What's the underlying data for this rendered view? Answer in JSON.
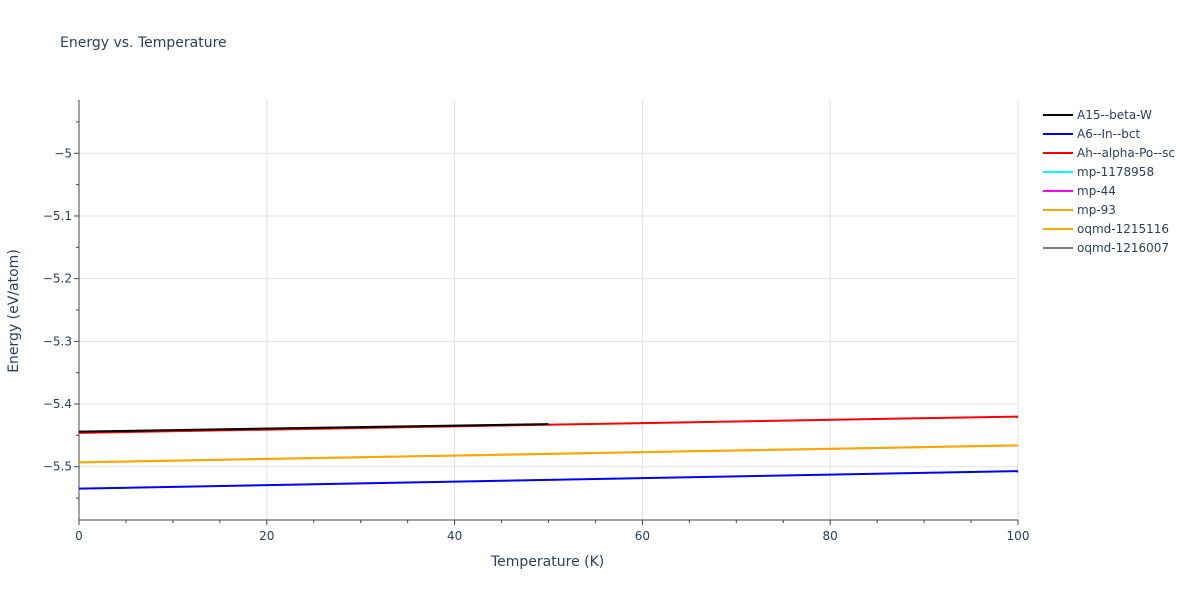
{
  "chart_data": {
    "type": "line",
    "title": "Energy vs. Temperature",
    "xlabel": "Temperature (K)",
    "ylabel": "Energy (eV/atom)",
    "xlim": [
      0,
      100
    ],
    "ylim": [
      -5.585,
      -4.915
    ],
    "x_ticks": [
      0,
      20,
      40,
      60,
      80,
      100
    ],
    "y_ticks": [
      -5.5,
      -5.4,
      -5.3,
      -5.2,
      -5.1,
      -5.0
    ],
    "y_tick_labels": [
      "−5.5",
      "−5.4",
      "−5.3",
      "−5.2",
      "−5.1",
      "−5"
    ],
    "grid": true,
    "legend_position": "right",
    "series": [
      {
        "name": "A15--beta-W",
        "color": "#000000",
        "x": [
          0,
          50
        ],
        "y": [
          -5.444,
          -5.432
        ]
      },
      {
        "name": "A6--In--bct",
        "color": "#0000ff",
        "x": [
          0,
          100
        ],
        "y": [
          -5.535,
          -5.507
        ]
      },
      {
        "name": "Ah--alpha-Po--sc",
        "color": "#ff0000",
        "x": [
          0,
          100
        ],
        "y": [
          -5.446,
          -5.42
        ]
      },
      {
        "name": "mp-1178958",
        "color": "#00ffff",
        "x": [],
        "y": []
      },
      {
        "name": "mp-44",
        "color": "#ff00ff",
        "x": [],
        "y": []
      },
      {
        "name": "mp-93",
        "color": "#ffa500",
        "x": [
          0,
          100
        ],
        "y": [
          -5.493,
          -5.466
        ]
      },
      {
        "name": "oqmd-1215116",
        "color": "#ffa500",
        "x": [
          0,
          100
        ],
        "y": [
          -5.493,
          -5.466
        ]
      },
      {
        "name": "oqmd-1216007",
        "color": "#808080",
        "x": [],
        "y": []
      }
    ]
  }
}
